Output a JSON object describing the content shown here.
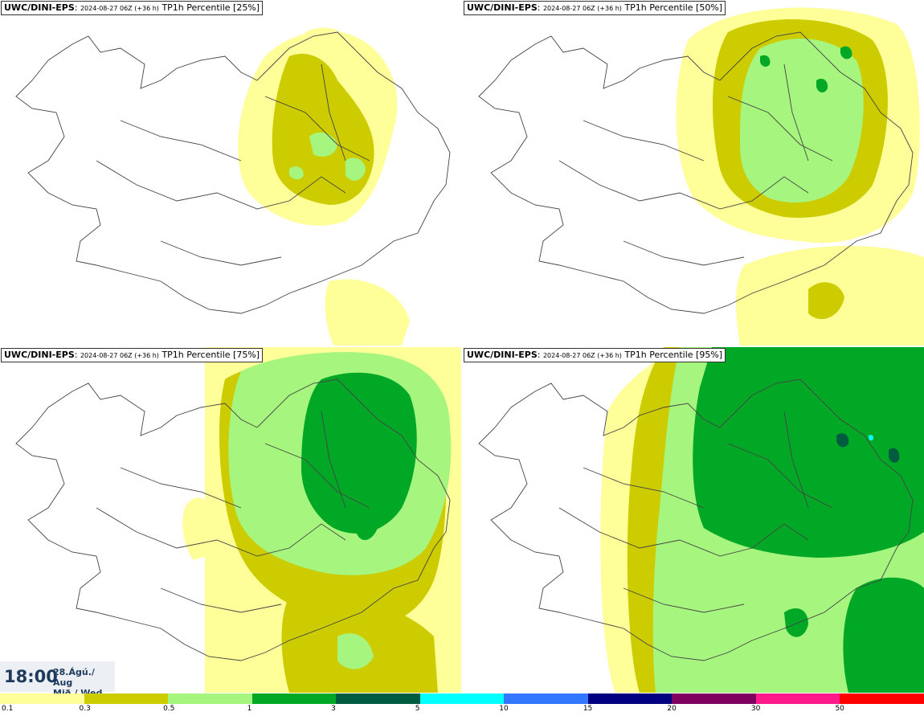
{
  "panels": [
    {
      "source": "UWC/DINI-EPS",
      "run": "2024-08-27 06Z (+36 h)",
      "label": "TP1h Percentile [25%]"
    },
    {
      "source": "UWC/DINI-EPS",
      "run": "2024-08-27 06Z (+36 h)",
      "label": "TP1h Percentile [50%]"
    },
    {
      "source": "UWC/DINI-EPS",
      "run": "2024-08-27 06Z (+36 h)",
      "label": "TP1h Percentile [75%]"
    },
    {
      "source": "UWC/DINI-EPS",
      "run": "2024-08-27 06Z (+36 h)",
      "label": "TP1h Percentile [95%]"
    }
  ],
  "valid_time": {
    "time": "18:00",
    "date_line1": "28.Ágú./ Aug",
    "date_line2": "Mið./ Wed"
  },
  "legend": {
    "colors": [
      "#ffff99",
      "#cccc00",
      "#a6f57e",
      "#00a826",
      "#005c40",
      "#00ffff",
      "#3377ff",
      "#000080",
      "#800060",
      "#ff1a8c",
      "#ff0000"
    ],
    "labels": [
      "0.1",
      "0.3",
      "0.5",
      "1",
      "3",
      "5",
      "10",
      "15",
      "20",
      "30",
      "50"
    ]
  },
  "colors": {
    "coast": "#444444",
    "title_text": "#1d3a5c"
  }
}
